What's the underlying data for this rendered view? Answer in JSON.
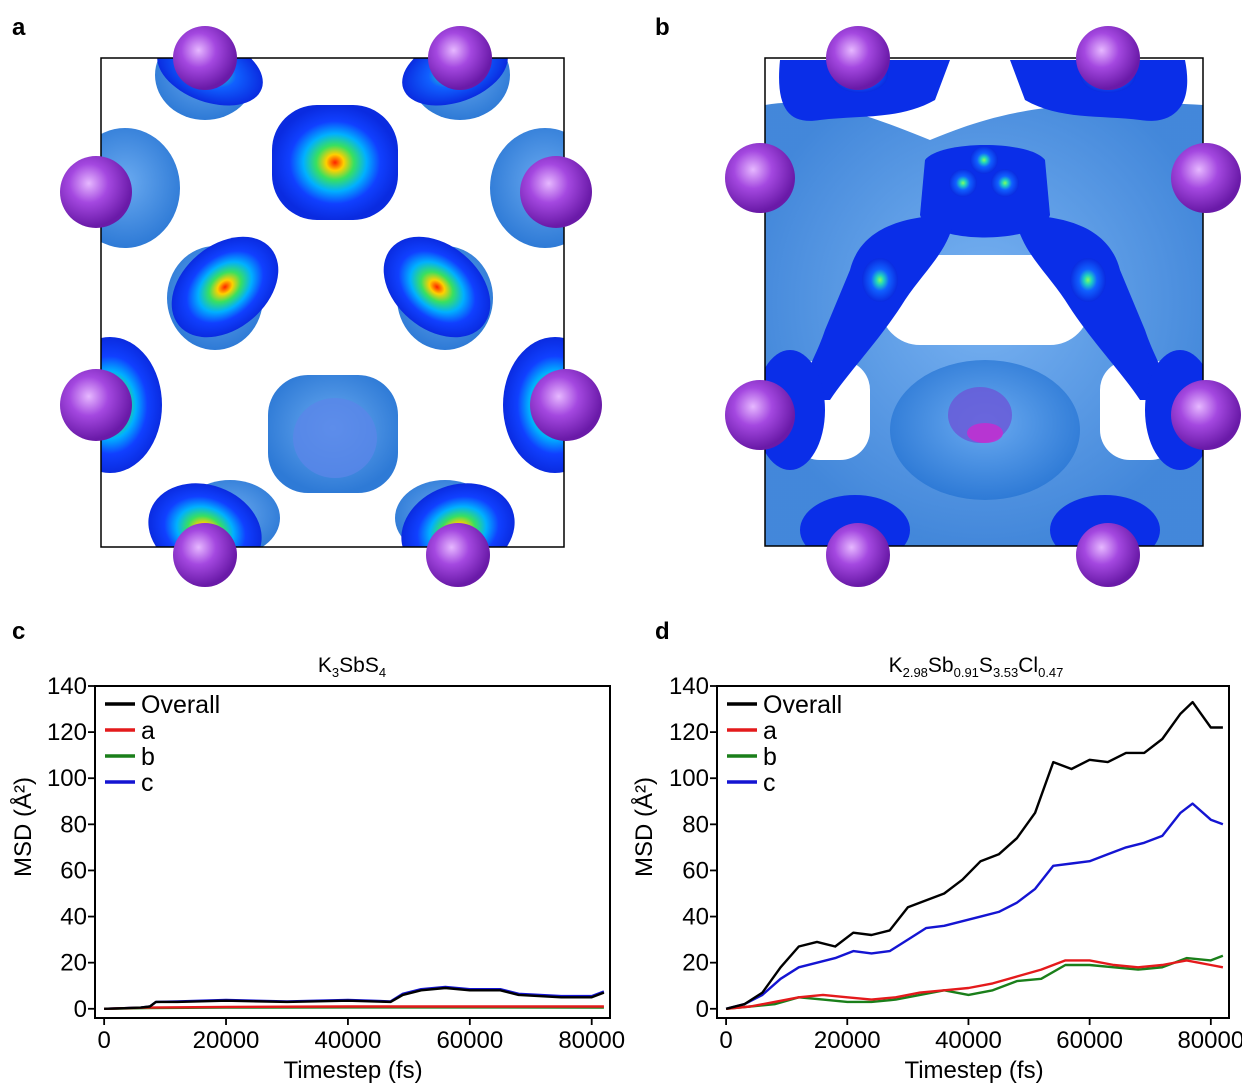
{
  "panels": {
    "a": "a",
    "b": "b",
    "c": "c",
    "d": "d"
  },
  "colors": {
    "overall": "#000000",
    "a": "#e41a1c",
    "b": "#1a7f1a",
    "c": "#1414d2",
    "iso_outer": "#3a88e0",
    "iso_inner": "#0a2ee8",
    "atom": "#9b3fd8"
  },
  "chart_data": [
    {
      "panel": "c",
      "type": "line",
      "title_parts": [
        {
          "t": "K",
          "sub": false
        },
        {
          "t": "3",
          "sub": true
        },
        {
          "t": "SbS",
          "sub": false
        },
        {
          "t": "4",
          "sub": true
        }
      ],
      "xlabel": "Timestep (fs)",
      "ylabel": "MSD (Å²)",
      "xlim": [
        -1500,
        83000
      ],
      "ylim": [
        -4,
        140
      ],
      "xticks": [
        0,
        20000,
        40000,
        60000,
        80000
      ],
      "yticks": [
        0,
        20,
        40,
        60,
        80,
        100,
        120,
        140
      ],
      "grid": false,
      "legend": "top-left",
      "series": [
        {
          "name": "Overall",
          "key": "overall",
          "x": [
            0,
            6000,
            7500,
            8500,
            12000,
            20000,
            30000,
            40000,
            47000,
            49000,
            52000,
            56000,
            60000,
            65000,
            68000,
            75000,
            80000,
            82000
          ],
          "y": [
            0,
            0.5,
            1,
            3,
            3,
            3.5,
            3,
            3.5,
            3,
            6,
            8,
            9,
            8,
            8,
            6,
            5,
            5,
            7
          ]
        },
        {
          "name": "a",
          "key": "a",
          "x": [
            0,
            7000,
            20000,
            40000,
            60000,
            82000
          ],
          "y": [
            0,
            0.5,
            0.8,
            1,
            1,
            1
          ]
        },
        {
          "name": "b",
          "key": "b",
          "x": [
            0,
            7000,
            20000,
            40000,
            60000,
            82000
          ],
          "y": [
            0,
            0.3,
            0.5,
            0.6,
            0.6,
            0.5
          ]
        },
        {
          "name": "c",
          "key": "c",
          "x": [
            0,
            6000,
            7500,
            8500,
            12000,
            20000,
            30000,
            40000,
            47000,
            49000,
            52000,
            56000,
            60000,
            65000,
            68000,
            75000,
            80000,
            82000
          ],
          "y": [
            0,
            0.5,
            1,
            3,
            3.2,
            3.8,
            3.2,
            3.8,
            3.2,
            6.5,
            8.5,
            9.5,
            8.5,
            8.5,
            6.5,
            5.5,
            5.5,
            7.5
          ]
        }
      ]
    },
    {
      "panel": "d",
      "type": "line",
      "title_parts": [
        {
          "t": "K",
          "sub": false
        },
        {
          "t": "2.98",
          "sub": true
        },
        {
          "t": "Sb",
          "sub": false
        },
        {
          "t": "0.91",
          "sub": true
        },
        {
          "t": "S",
          "sub": false
        },
        {
          "t": "3.53",
          "sub": true
        },
        {
          "t": "Cl",
          "sub": false
        },
        {
          "t": "0.47",
          "sub": true
        }
      ],
      "xlabel": "Timestep (fs)",
      "ylabel": "MSD (Å²)",
      "xlim": [
        -1500,
        83000
      ],
      "ylim": [
        -4,
        140
      ],
      "xticks": [
        0,
        20000,
        40000,
        60000,
        80000
      ],
      "yticks": [
        0,
        20,
        40,
        60,
        80,
        100,
        120,
        140
      ],
      "grid": false,
      "legend": "top-left",
      "series": [
        {
          "name": "Overall",
          "key": "overall",
          "x": [
            0,
            3000,
            6000,
            9000,
            12000,
            15000,
            18000,
            21000,
            24000,
            27000,
            30000,
            33000,
            36000,
            39000,
            42000,
            45000,
            48000,
            51000,
            54000,
            57000,
            60000,
            63000,
            66000,
            69000,
            72000,
            75000,
            77000,
            80000,
            82000
          ],
          "y": [
            0,
            2,
            7,
            18,
            27,
            29,
            27,
            33,
            32,
            34,
            44,
            47,
            50,
            56,
            64,
            67,
            74,
            85,
            107,
            104,
            108,
            107,
            111,
            111,
            117,
            128,
            133,
            122,
            122
          ]
        },
        {
          "name": "a",
          "key": "a",
          "x": [
            0,
            4000,
            8000,
            12000,
            16000,
            20000,
            24000,
            28000,
            32000,
            36000,
            40000,
            44000,
            48000,
            52000,
            56000,
            60000,
            64000,
            68000,
            72000,
            76000,
            80000,
            82000
          ],
          "y": [
            0,
            1,
            3,
            5,
            6,
            5,
            4,
            5,
            7,
            8,
            9,
            11,
            14,
            17,
            21,
            21,
            19,
            18,
            19,
            21,
            19,
            18
          ]
        },
        {
          "name": "b",
          "key": "b",
          "x": [
            0,
            4000,
            8000,
            12000,
            16000,
            20000,
            24000,
            28000,
            32000,
            36000,
            40000,
            44000,
            48000,
            52000,
            56000,
            60000,
            64000,
            68000,
            72000,
            76000,
            80000,
            82000
          ],
          "y": [
            0,
            1,
            2,
            5,
            4,
            3,
            3,
            4,
            6,
            8,
            6,
            8,
            12,
            13,
            19,
            19,
            18,
            17,
            18,
            22,
            21,
            23
          ]
        },
        {
          "name": "c",
          "key": "c",
          "x": [
            0,
            3000,
            6000,
            9000,
            12000,
            15000,
            18000,
            21000,
            24000,
            27000,
            30000,
            33000,
            36000,
            39000,
            42000,
            45000,
            48000,
            51000,
            54000,
            57000,
            60000,
            63000,
            66000,
            69000,
            72000,
            75000,
            77000,
            80000,
            82000
          ],
          "y": [
            0,
            2,
            6,
            13,
            18,
            20,
            22,
            25,
            24,
            25,
            30,
            35,
            36,
            38,
            40,
            42,
            46,
            52,
            62,
            63,
            64,
            67,
            70,
            72,
            75,
            85,
            89,
            82,
            80
          ]
        }
      ]
    }
  ]
}
